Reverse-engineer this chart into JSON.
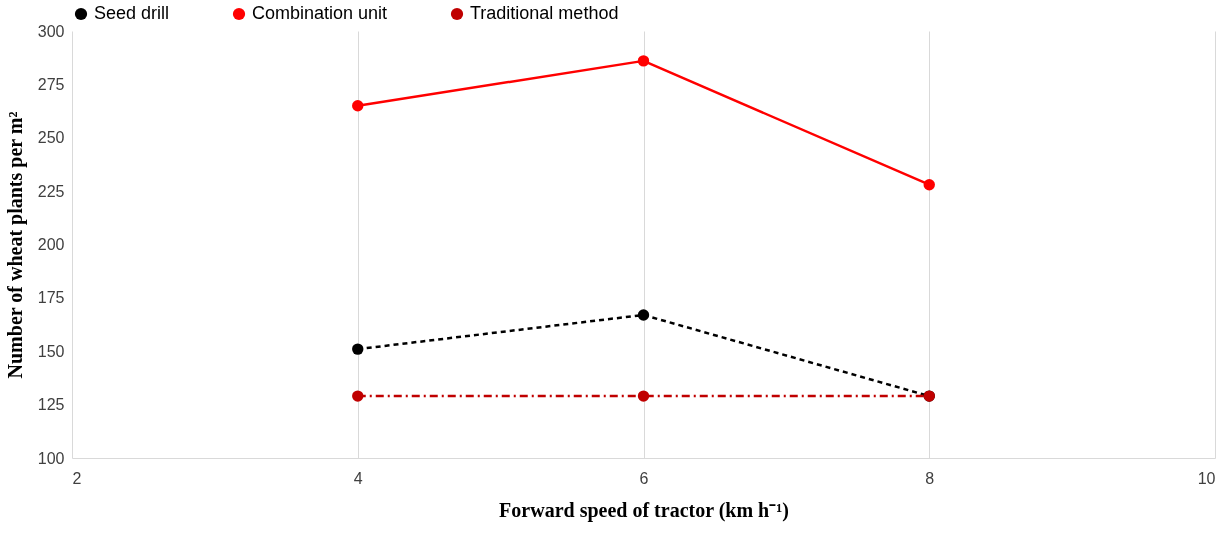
{
  "chart_data": {
    "type": "line",
    "xlabel": "Forward speed of tractor (km h⁻¹)",
    "ylabel": "Number of wheat plants per m²",
    "x": [
      4,
      6,
      8
    ],
    "series": [
      {
        "name": "Seed drill",
        "color": "#000000",
        "line_style": "dashed",
        "values": [
          151,
          167,
          129
        ]
      },
      {
        "name": "Combination unit",
        "color": "#ff0000",
        "line_style": "solid",
        "values": [
          265,
          286,
          228
        ]
      },
      {
        "name": "Traditional method",
        "color": "#c00000",
        "line_style": "dashdot",
        "values": [
          129,
          129,
          129
        ]
      }
    ],
    "xlim": [
      2,
      10
    ],
    "xticks": [
      2,
      4,
      6,
      8,
      10
    ],
    "ylim": [
      100,
      300
    ],
    "yticks": [
      100,
      125,
      150,
      175,
      200,
      225,
      250,
      275,
      300
    ],
    "grid": "x",
    "legend": "top",
    "marker": "circle"
  }
}
